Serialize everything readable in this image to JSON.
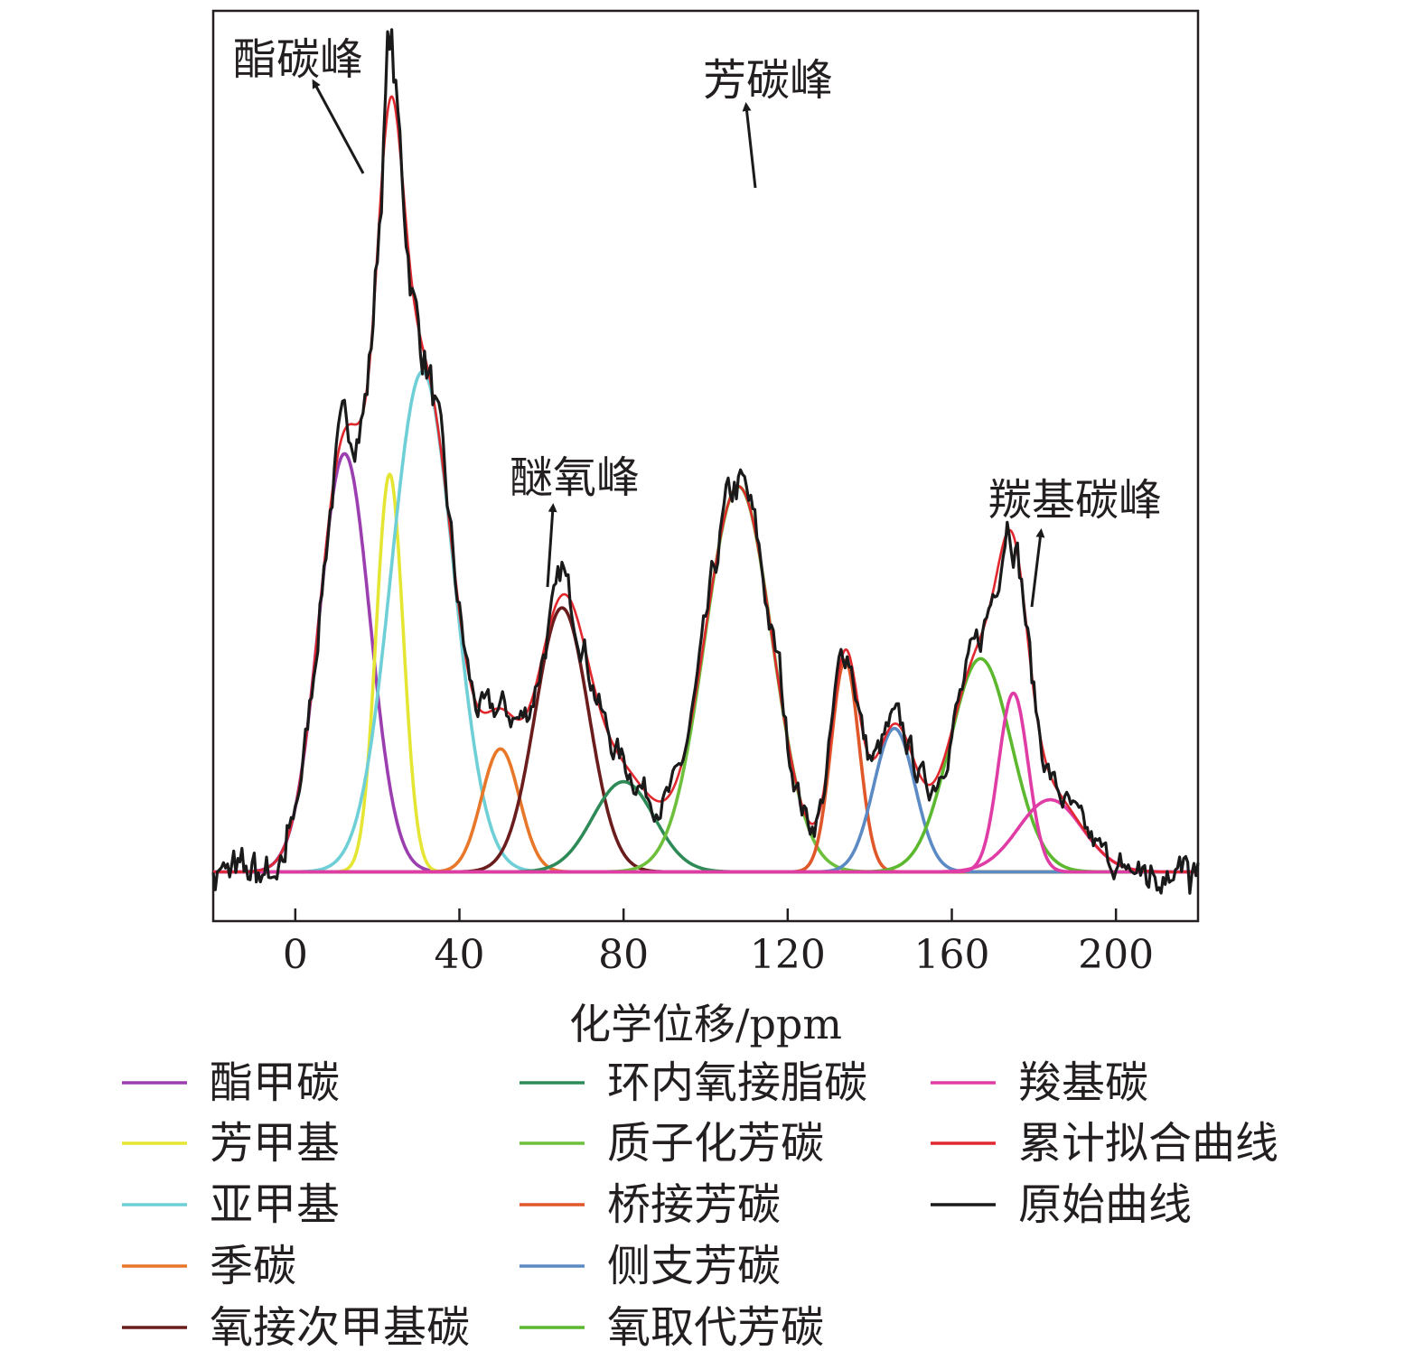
{
  "chart_data": {
    "type": "line",
    "title": "",
    "xlabel": "化学位移/ppm",
    "ylabel": "",
    "xlim": [
      -20,
      220
    ],
    "ylim": [
      -0.06,
      1.05
    ],
    "xticks": [
      0,
      40,
      80,
      120,
      160,
      200
    ],
    "x_tick_labels": [
      "0",
      "40",
      "80",
      "120",
      "160",
      "200"
    ],
    "grid": false,
    "legend_position": "bottom",
    "series": [
      {
        "name": "酯甲碳",
        "color": "#9b3fb0",
        "type": "gaussian",
        "center": 12,
        "height": 0.51,
        "sigma": 6.2
      },
      {
        "name": "芳甲基",
        "color": "#e5e633",
        "type": "gaussian",
        "center": 23,
        "height": 0.485,
        "sigma": 3.3
      },
      {
        "name": "亚甲基",
        "color": "#6fcfd6",
        "type": "gaussian",
        "center": 31,
        "height": 0.61,
        "sigma": 7.6
      },
      {
        "name": "季碳",
        "color": "#e8772a",
        "type": "gaussian",
        "center": 50,
        "height": 0.15,
        "sigma": 4.6
      },
      {
        "name": "氧接次甲基碳",
        "color": "#6b1d1d",
        "type": "gaussian",
        "center": 65,
        "height": 0.322,
        "sigma": 6.5
      },
      {
        "name": "环内氧接脂碳",
        "color": "#2e8b57",
        "type": "gaussian",
        "center": 80,
        "height": 0.11,
        "sigma": 7.5
      },
      {
        "name": "质子化芳碳",
        "color": "#6dbf3c",
        "type": "gaussian",
        "center": 108,
        "height": 0.47,
        "sigma": 8.2
      },
      {
        "name": "桥接芳碳",
        "color": "#e0572a",
        "type": "gaussian",
        "center": 134,
        "height": 0.258,
        "sigma": 3.4
      },
      {
        "name": "侧支芳碳",
        "color": "#5b8ac4",
        "type": "gaussian",
        "center": 146,
        "height": 0.175,
        "sigma": 5.0
      },
      {
        "name": "氧取代芳碳",
        "color": "#5cb82e",
        "type": "gaussian",
        "center": 167,
        "height": 0.26,
        "sigma": 7.5
      },
      {
        "name": "羧基碳",
        "color": "#e03ca6",
        "type": "gaussian",
        "center": 175,
        "height": 0.218,
        "sigma": 3.6
      },
      {
        "name": "羰基碳",
        "color": "#e03ca6",
        "type": "gaussian",
        "center": 184,
        "height": 0.088,
        "sigma": 7.8
      },
      {
        "name": "累计拟合曲线",
        "color": "#e0282e",
        "type": "sum"
      },
      {
        "name": "原始曲线",
        "color": "#1a1a1a",
        "type": "raw"
      }
    ],
    "legend_entries": [
      {
        "label": "酯甲碳",
        "color": "#9b3fb0",
        "col": 0,
        "row": 0
      },
      {
        "label": "芳甲基",
        "color": "#e5e633",
        "col": 0,
        "row": 1
      },
      {
        "label": "亚甲基",
        "color": "#6fcfd6",
        "col": 0,
        "row": 2
      },
      {
        "label": "季碳",
        "color": "#e8772a",
        "col": 0,
        "row": 3
      },
      {
        "label": "氧接次甲基碳",
        "color": "#6b1d1d",
        "col": 0,
        "row": 4
      },
      {
        "label": "环内氧接脂碳",
        "color": "#2e8b57",
        "col": 1,
        "row": 0
      },
      {
        "label": "质子化芳碳",
        "color": "#6dbf3c",
        "col": 1,
        "row": 1
      },
      {
        "label": "桥接芳碳",
        "color": "#e0572a",
        "col": 1,
        "row": 2
      },
      {
        "label": "侧支芳碳",
        "color": "#5b8ac4",
        "col": 1,
        "row": 3
      },
      {
        "label": "氧取代芳碳",
        "color": "#5cb82e",
        "col": 1,
        "row": 4
      },
      {
        "label": "羧基碳",
        "color": "#e03ca6",
        "col": 2,
        "row": 0
      },
      {
        "label": "累计拟合曲线",
        "color": "#e0282e",
        "col": 2,
        "row": 1
      },
      {
        "label": "原始曲线",
        "color": "#1a1a1a",
        "col": 2,
        "row": 2
      }
    ],
    "annotations": [
      {
        "text": "酯碳峰",
        "x": 23,
        "y": 1.01
      },
      {
        "text": "芳碳峰",
        "x": 119,
        "y": 0.93
      },
      {
        "text": "醚氧峰",
        "x": 69,
        "y": 0.48
      },
      {
        "text": "羰基碳峰",
        "x": 182,
        "y": 0.465
      }
    ]
  }
}
